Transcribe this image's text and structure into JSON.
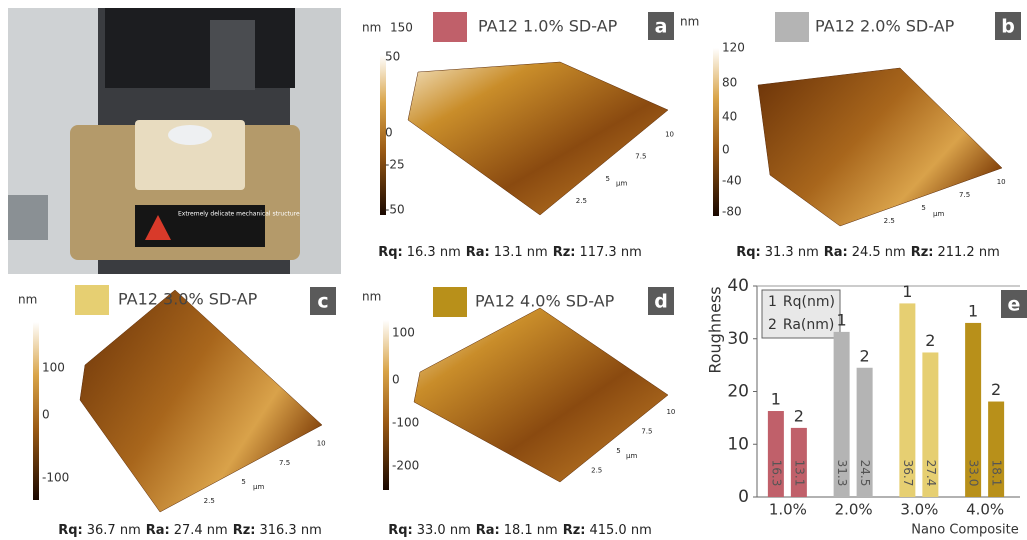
{
  "photo": {
    "label": "Extremely delicate mechanical structure"
  },
  "panels": [
    {
      "letter": "a",
      "legend": "PA12 1.0% SD-AP",
      "color": "#c0606a",
      "unit": "nm",
      "colorbar_ticks": [
        150,
        50,
        0,
        -25,
        -50
      ],
      "surface_ticks": [
        2.5,
        5,
        7.5,
        10
      ],
      "surface_unit": "µm",
      "stats": [
        {
          "label": "Rq:",
          "value": "16.3 nm"
        },
        {
          "label": "Ra:",
          "value": "13.1 nm"
        },
        {
          "label": "Rz:",
          "value": "117.3 nm"
        }
      ]
    },
    {
      "letter": "b",
      "legend": "PA12 2.0% SD-AP",
      "color": "#b4b4b4",
      "unit": "nm",
      "colorbar_ticks": [
        120,
        80,
        40,
        0,
        -40,
        -80
      ],
      "surface_ticks": [
        2.5,
        5,
        7.5,
        10
      ],
      "surface_unit": "µm",
      "stats": [
        {
          "label": "Rq:",
          "value": "31.3 nm"
        },
        {
          "label": "Ra:",
          "value": "24.5 nm"
        },
        {
          "label": "Rz:",
          "value": "211.2 nm"
        }
      ]
    },
    {
      "letter": "c",
      "legend": "PA12 3.0% SD-AP",
      "color": "#e6cf72",
      "unit": "nm",
      "colorbar_ticks": [
        100,
        0,
        -100
      ],
      "surface_ticks": [
        2.5,
        5,
        7.5,
        10
      ],
      "surface_unit": "µm",
      "stats": [
        {
          "label": "Rq:",
          "value": "36.7 nm"
        },
        {
          "label": "Ra:",
          "value": "27.4 nm"
        },
        {
          "label": "Rz:",
          "value": "316.3 nm"
        }
      ]
    },
    {
      "letter": "d",
      "legend": "PA12 4.0% SD-AP",
      "color": "#b8901a",
      "unit": "nm",
      "colorbar_ticks": [
        100,
        0,
        -100,
        -200
      ],
      "surface_ticks": [
        2.5,
        5,
        7.5,
        10
      ],
      "surface_unit": "µm",
      "stats": [
        {
          "label": "Rq:",
          "value": "33.0 nm"
        },
        {
          "label": "Ra:",
          "value": "18.1 nm"
        },
        {
          "label": "Rz:",
          "value": "415.0 nm"
        }
      ]
    }
  ],
  "chart_data": {
    "type": "bar",
    "letter": "e",
    "ylabel": "Roughness",
    "xlabel": "Nano Composite",
    "categories": [
      "1.0%",
      "2.0%",
      "3.0%",
      "4.0%"
    ],
    "category_colors": [
      "#c0606a",
      "#b4b4b4",
      "#e6cf72",
      "#b8901a"
    ],
    "series": [
      {
        "name": "Rq(nm)",
        "marker": "1",
        "values": [
          16.3,
          31.3,
          36.7,
          33.0
        ],
        "value_labels": [
          "16.3",
          "31.3",
          "36.7",
          "33.0"
        ]
      },
      {
        "name": "Ra(nm)",
        "marker": "2",
        "values": [
          13.1,
          24.5,
          27.4,
          18.1
        ]
      }
    ],
    "ylim": [
      0,
      40
    ],
    "yticks": [
      0,
      10,
      20,
      30,
      40
    ]
  }
}
